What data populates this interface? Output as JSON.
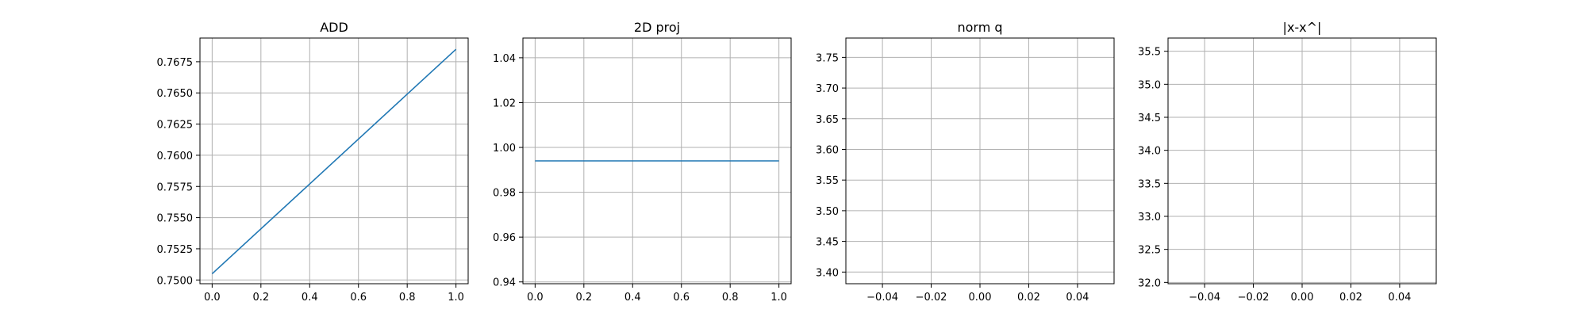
{
  "chart_data": [
    {
      "type": "line",
      "title": "ADD",
      "xlabel": "",
      "ylabel": "",
      "xlim": [
        -0.05,
        1.05
      ],
      "ylim": [
        0.7497,
        0.7694
      ],
      "xticks": [
        0.0,
        0.2,
        0.4,
        0.6,
        0.8,
        1.0
      ],
      "xtick_labels": [
        "0.0",
        "0.2",
        "0.4",
        "0.6",
        "0.8",
        "1.0"
      ],
      "yticks": [
        0.75,
        0.7525,
        0.755,
        0.7575,
        0.76,
        0.7625,
        0.765,
        0.7675
      ],
      "ytick_labels": [
        "0.7500",
        "0.7525",
        "0.7550",
        "0.7575",
        "0.7600",
        "0.7625",
        "0.7650",
        "0.7675"
      ],
      "grid": true,
      "series": [
        {
          "x": [
            0,
            1
          ],
          "values": [
            0.7505,
            0.7685
          ],
          "color": "#1f77b4"
        }
      ]
    },
    {
      "type": "line",
      "title": "2D proj",
      "xlabel": "",
      "ylabel": "",
      "xlim": [
        -0.05,
        1.05
      ],
      "ylim": [
        0.9392,
        1.0488
      ],
      "xticks": [
        0.0,
        0.2,
        0.4,
        0.6,
        0.8,
        1.0
      ],
      "xtick_labels": [
        "0.0",
        "0.2",
        "0.4",
        "0.6",
        "0.8",
        "1.0"
      ],
      "yticks": [
        0.94,
        0.96,
        0.98,
        1.0,
        1.02,
        1.04
      ],
      "ytick_labels": [
        "0.94",
        "0.96",
        "0.98",
        "1.00",
        "1.02",
        "1.04"
      ],
      "grid": true,
      "series": [
        {
          "x": [
            0,
            1
          ],
          "values": [
            0.994,
            0.994
          ],
          "color": "#1f77b4"
        }
      ]
    },
    {
      "type": "line",
      "title": "norm q",
      "xlabel": "",
      "ylabel": "",
      "xlim": [
        -0.055,
        0.055
      ],
      "ylim": [
        3.381,
        3.7815
      ],
      "xticks": [
        -0.04,
        -0.02,
        0.0,
        0.02,
        0.04
      ],
      "xtick_labels": [
        "−0.04",
        "−0.02",
        "0.00",
        "0.02",
        "0.04"
      ],
      "yticks": [
        3.4,
        3.45,
        3.5,
        3.55,
        3.6,
        3.65,
        3.7,
        3.75
      ],
      "ytick_labels": [
        "3.40",
        "3.45",
        "3.50",
        "3.55",
        "3.60",
        "3.65",
        "3.70",
        "3.75"
      ],
      "grid": true,
      "series": []
    },
    {
      "type": "line",
      "title": "|x-x^|",
      "xlabel": "",
      "ylabel": "",
      "xlim": [
        -0.055,
        0.055
      ],
      "ylim": [
        31.98,
        35.7
      ],
      "xticks": [
        -0.04,
        -0.02,
        0.0,
        0.02,
        0.04
      ],
      "xtick_labels": [
        "−0.04",
        "−0.02",
        "0.00",
        "0.02",
        "0.04"
      ],
      "yticks": [
        32.0,
        32.5,
        33.0,
        33.5,
        34.0,
        34.5,
        35.0,
        35.5
      ],
      "ytick_labels": [
        "32.0",
        "32.5",
        "33.0",
        "33.5",
        "34.0",
        "34.5",
        "35.0",
        "35.5"
      ],
      "grid": true,
      "series": []
    }
  ]
}
